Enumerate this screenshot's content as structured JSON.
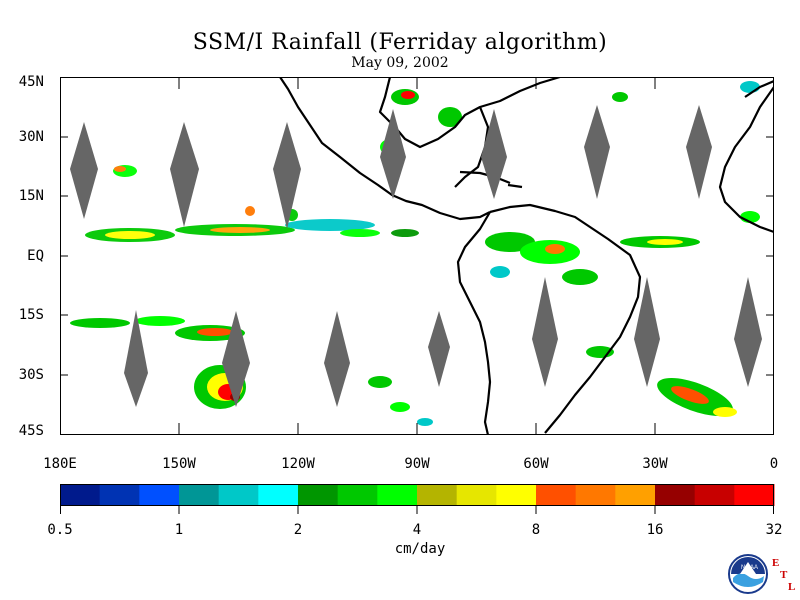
{
  "title": "SSM/I Rainfall (Ferriday algorithm)",
  "date": "May 09, 2002",
  "lat_labels": [
    "45N",
    "30N",
    "15N",
    "EQ",
    "15S",
    "30S",
    "45S"
  ],
  "lon_labels": [
    "180E",
    "150W",
    "120W",
    "90W",
    "60W",
    "30W",
    "0"
  ],
  "colorbar": {
    "colors": [
      "#001a8c",
      "#0033b3",
      "#0050ff",
      "#009696",
      "#00c8c8",
      "#00ffff",
      "#009600",
      "#00c800",
      "#00ff00",
      "#b4b400",
      "#e6e600",
      "#ffff00",
      "#ff5000",
      "#ff7800",
      "#ffa000",
      "#960000",
      "#c80000",
      "#ff0000"
    ],
    "labels": [
      "0.5",
      "1",
      "2",
      "4",
      "8",
      "16",
      "32"
    ],
    "unit": "cm/day"
  },
  "logo": {
    "name": "NOAA",
    "letters": [
      "E",
      "T",
      "L"
    ],
    "letter_color": "#cc0000"
  },
  "land_color": "#000000",
  "mask_color": "#666666"
}
